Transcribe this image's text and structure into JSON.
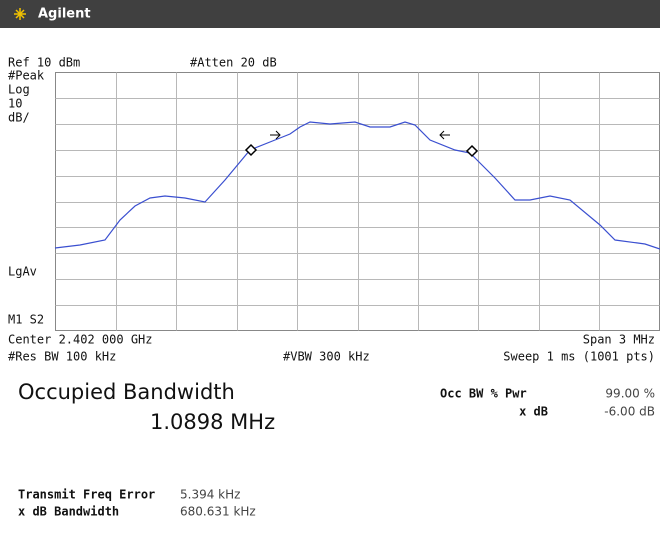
{
  "header": {
    "brand": "Agilent"
  },
  "display": {
    "ref_level": "Ref 10 dBm",
    "attenuation": "#Atten 20 dB",
    "detector": "#Peak",
    "scale_type": "Log",
    "scale_value": "10",
    "scale_unit": "dB/",
    "averaging": "LgAv",
    "markers": "M1 S2"
  },
  "footer": {
    "center": "Center 2.402 000 GHz",
    "span": "Span 3 MHz",
    "res_bw": "#Res BW 100 kHz",
    "vbw": "#VBW 300 kHz",
    "sweep": "Sweep 1 ms (1001 pts)"
  },
  "measurement": {
    "title": "Occupied Bandwidth",
    "value": "1.0898 MHz",
    "params": [
      {
        "label": "Occ BW % Pwr",
        "value": "99.00 %"
      },
      {
        "label": "x dB",
        "value": "-6.00 dB"
      }
    ]
  },
  "results": [
    {
      "label": "Transmit Freq Error",
      "value": "5.394 kHz"
    },
    {
      "label": "x dB Bandwidth",
      "value": "680.631 kHz"
    }
  ]
}
